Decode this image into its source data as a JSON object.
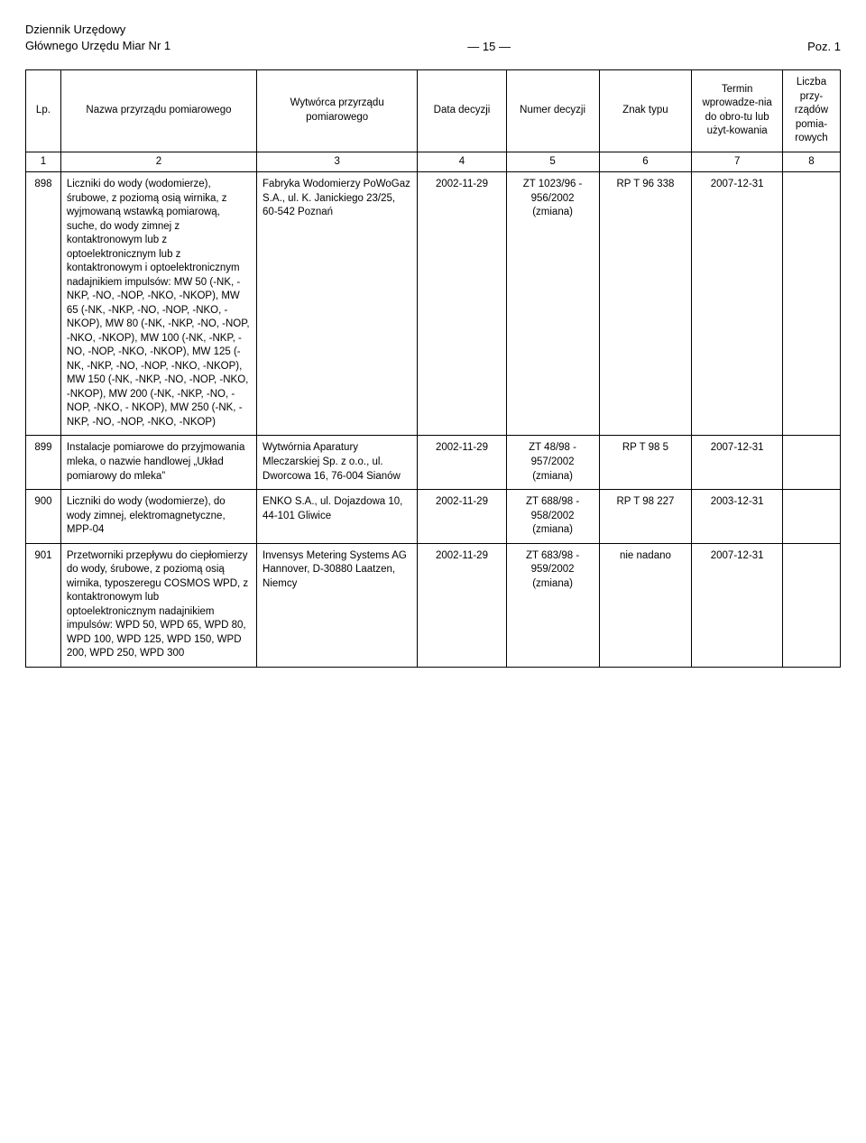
{
  "header": {
    "line1": "Dziennik Urzędowy",
    "line2": "Głównego Urzędu Miar Nr 1",
    "page_marker": "— 15 —",
    "poz": "Poz. 1"
  },
  "columns": {
    "lp": "Lp.",
    "nazwa": "Nazwa przyrządu pomiarowego",
    "wytworca": "Wytwórca przyrządu pomiarowego",
    "data": "Data decyzji",
    "numer": "Numer decyzji",
    "znak": "Znak typu",
    "termin": "Termin wprowadze-nia do obro-tu lub użyt-kowania",
    "liczba": "Liczba przy-rządów pomia-rowych"
  },
  "numrow": {
    "c1": "1",
    "c2": "2",
    "c3": "3",
    "c4": "4",
    "c5": "5",
    "c6": "6",
    "c7": "7",
    "c8": "8"
  },
  "rows": [
    {
      "lp": "898",
      "nazwa": "Liczniki do wody (wodomierze), śrubowe, z poziomą osią wirnika, z wyjmowaną wstawką pomiarową, suche, do wody zimnej z kontaktronowym lub z optoelektronicznym lub z kontaktronowym i optoelektronicznym nadajnikiem impulsów: MW 50 (-NK, -NKP, -NO, -NOP, -NKO, -NKOP), MW 65 (-NK, -NKP, -NO, -NOP, -NKO, -NKOP), MW 80 (-NK, -NKP, -NO, -NOP, -NKO, -NKOP), MW 100 (-NK, -NKP, -NO, -NOP, -NKO, -NKOP), MW 125 (-NK, -NKP, -NO, -NOP, -NKO, -NKOP), MW 150 (-NK, -NKP, -NO, -NOP, -NKO, -NKOP), MW 200 (-NK, -NKP, -NO, -NOP, -NKO, - NKOP), MW 250 (-NK, -NKP, -NO, -NOP, -NKO, -NKOP)",
      "wytworca": "Fabryka Wodomierzy PoWoGaz S.A., ul. K. Janickiego 23/25, 60-542 Poznań",
      "data": "2002-11-29",
      "numer": "ZT 1023/96 - 956/2002 (zmiana)",
      "znak": "RP T 96 338",
      "termin": "2007-12-31",
      "liczba": ""
    },
    {
      "lp": "899",
      "nazwa": "Instalacje pomiarowe do przyjmowania mleka, o nazwie handlowej „Układ pomiarowy do mleka”",
      "wytworca": "Wytwórnia Aparatury Mleczarskiej Sp. z o.o., ul. Dworcowa 16, 76-004 Sianów",
      "data": "2002-11-29",
      "numer": "ZT 48/98 - 957/2002 (zmiana)",
      "znak": "RP T 98 5",
      "termin": "2007-12-31",
      "liczba": ""
    },
    {
      "lp": "900",
      "nazwa": "Liczniki do wody (wodomierze), do wody zimnej, elektromagnetyczne, MPP-04",
      "wytworca": "ENKO S.A., ul. Dojazdowa 10, 44-101 Gliwice",
      "data": "2002-11-29",
      "numer": "ZT 688/98 - 958/2002 (zmiana)",
      "znak": "RP T 98 227",
      "termin": "2003-12-31",
      "liczba": ""
    },
    {
      "lp": "901",
      "nazwa": "Przetworniki przepływu do ciepłomierzy do wody, śrubowe, z poziomą osią wirnika, typoszeregu COSMOS WPD, z kontaktronowym lub optoelektronicznym nadajnikiem impulsów: WPD 50, WPD 65, WPD 80, WPD 100, WPD 125, WPD 150, WPD 200, WPD 250, WPD 300",
      "wytworca": "Invensys Metering Systems AG Hannover, D-30880 Laatzen, Niemcy",
      "data": "2002-11-29",
      "numer": "ZT 683/98 - 959/2002 (zmiana)",
      "znak": "nie nadano",
      "termin": "2007-12-31",
      "liczba": ""
    }
  ]
}
